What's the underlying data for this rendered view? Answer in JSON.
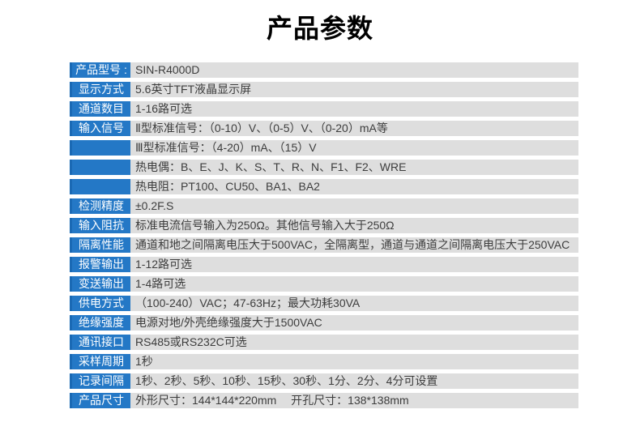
{
  "title": "产品参数",
  "colors": {
    "accent": "#2478c6",
    "accent_dark": "#1a69b4",
    "row_bg": "#dedede",
    "value_text": "#3d3d3d"
  },
  "table": {
    "rows": [
      {
        "label": "产品型号 :",
        "value": "SIN-R4000D"
      },
      {
        "label": "显示方式",
        "value": "5.6英寸TFT液晶显示屏"
      },
      {
        "label": "通道数目",
        "value": "1-16路可选"
      },
      {
        "label": "输入信号",
        "value": "Ⅱ型标准信号：（0-10）V、（0-5）V、（0-20）mA等"
      },
      {
        "label": "",
        "value": "Ⅲ型标准信号：（4-20）mA、（15）V"
      },
      {
        "label": "",
        "value": "热电偶：B、E、J、K、S、T、R、N、F1、F2、WRE"
      },
      {
        "label": "",
        "value": "热电阻：PT100、CU50、BA1、BA2"
      },
      {
        "label": "检测精度",
        "value": "±0.2F.S"
      },
      {
        "label": "输入阻抗",
        "value": "标准电流信号输入为250Ω。其他信号输入大于250Ω"
      },
      {
        "label": "隔离性能",
        "value": "通道和地之间隔离电压大于500VAC，全隔离型，通道与通道之间隔离电压大于250VAC"
      },
      {
        "label": "报警输出",
        "value": "1-12路可选"
      },
      {
        "label": "变送输出",
        "value": "1-4路可选"
      },
      {
        "label": "供电方式",
        "value": "（100-240）VAC；47-63Hz；最大功耗30VA"
      },
      {
        "label": "绝缘强度",
        "value": "电源对地/外壳绝缘强度大于1500VAC"
      },
      {
        "label": "通讯接口",
        "value": "RS485或RS232C可选"
      },
      {
        "label": "采样周期",
        "value": "1秒"
      },
      {
        "label": "记录间隔",
        "value": "1秒、2秒、5秒、10秒、15秒、30秒、1分、2分、4分可设置"
      },
      {
        "label": "产品尺寸",
        "value": "外形尺寸：144*144*220mm　 开孔尺寸：138*138mm"
      }
    ]
  }
}
